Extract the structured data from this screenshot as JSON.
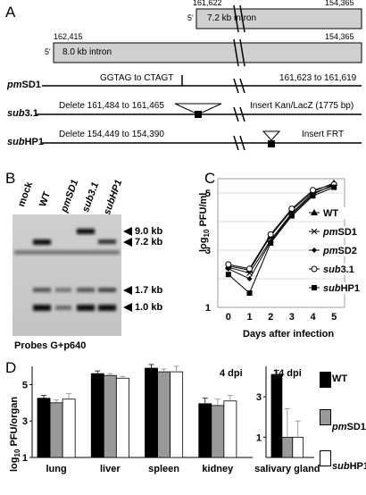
{
  "panels": {
    "a": "A",
    "b": "B",
    "c": "C",
    "d": "D"
  },
  "panel_a": {
    "intron1": {
      "start": "161,622",
      "end": "154,365",
      "five": "5'",
      "label": "7.2 kb intron"
    },
    "intron2": {
      "start": "162,415",
      "end": "154,365",
      "five": "5'",
      "label": "8.0 kb intron"
    },
    "pmSD1": {
      "name_it": "pm",
      "name_rest": "SD1",
      "left_text": "GGTAG to CTAGT",
      "right_text": "161,623 to 161,619"
    },
    "sub31": {
      "name_it": "sub",
      "name_rest": "3.1",
      "left_text": "Delete 161,484 to 161,465",
      "right_text": "Insert Kan/LacZ (1775 bp)"
    },
    "subHP1": {
      "name_it": "sub",
      "name_rest": "HP1",
      "left_text": "Delete 154,449 to 154,390",
      "right_text": "Insert FRT"
    }
  },
  "panel_b": {
    "lanes": [
      "mock",
      "WT",
      "pmSD1",
      "sub3.1",
      "subHP1"
    ],
    "bands": [
      "9.0 kb",
      "7.2 kb",
      "1.7 kb",
      "1.0 kb"
    ],
    "caption": "Probes G+p640"
  },
  "chart_data": [
    {
      "type": "line",
      "xlabel": "Days after infection",
      "ylabel": "log10 PFU/ml",
      "x": [
        0,
        1,
        2,
        3,
        4,
        5
      ],
      "ylim": [
        1,
        5.5
      ],
      "yticks": [
        1,
        3,
        5
      ],
      "grid": true,
      "legend_position": "right",
      "series": [
        {
          "name": "WT",
          "marker": "triangle",
          "values": [
            2.45,
            2.3,
            3.5,
            4.4,
            5.05,
            5.35
          ]
        },
        {
          "name": "pmSD1",
          "marker": "x",
          "values": [
            2.4,
            2.2,
            3.35,
            4.3,
            5.0,
            5.25
          ]
        },
        {
          "name": "pmSD2",
          "marker": "diamond",
          "values": [
            2.35,
            2.0,
            3.3,
            4.25,
            4.95,
            5.3
          ]
        },
        {
          "name": "sub3.1",
          "marker": "circle",
          "values": [
            2.5,
            2.35,
            3.55,
            4.45,
            5.1,
            5.3
          ]
        },
        {
          "name": "subHP1",
          "marker": "square",
          "values": [
            2.15,
            1.5,
            3.25,
            4.2,
            4.9,
            5.2
          ]
        }
      ]
    },
    {
      "type": "bar",
      "ylabel": "log10 PFU/organ",
      "annotation": "4 dpi",
      "categories": [
        "lung",
        "liver",
        "spleen",
        "kidney"
      ],
      "ylim": [
        1,
        6
      ],
      "yticks": [
        1,
        3,
        5
      ],
      "series": [
        {
          "name": "WT",
          "color": "#000000",
          "values": [
            4.25,
            5.6,
            5.9,
            3.95
          ],
          "err": [
            0.15,
            0.15,
            0.2,
            0.3
          ]
        },
        {
          "name": "pmSD1",
          "color": "#999999",
          "values": [
            4.0,
            5.5,
            5.7,
            3.85
          ],
          "err": [
            0.15,
            0.1,
            0.15,
            0.35
          ]
        },
        {
          "name": "subHP1",
          "color": "#ffffff",
          "values": [
            4.2,
            5.35,
            5.7,
            4.1
          ],
          "err": [
            0.3,
            0.1,
            0.3,
            0.3
          ]
        }
      ]
    },
    {
      "type": "bar",
      "annotation": "14 dpi",
      "categories": [
        "salivary gland"
      ],
      "ylim": [
        0,
        4.5
      ],
      "yticks": [
        1,
        3
      ],
      "series": [
        {
          "name": "WT",
          "color": "#000000",
          "values": [
            4.1
          ],
          "err": [
            0.2
          ]
        },
        {
          "name": "pmSD1",
          "color": "#999999",
          "values": [
            1.0
          ],
          "err": [
            1.4
          ]
        },
        {
          "name": "subHP1",
          "color": "#ffffff",
          "values": [
            1.0
          ],
          "err": [
            0.8
          ]
        }
      ]
    }
  ],
  "legend_d": [
    {
      "name_it": "",
      "name_rest": "WT",
      "color": "#000000"
    },
    {
      "name_it": "pm",
      "name_rest": "SD1",
      "color": "#999999"
    },
    {
      "name_it": "sub",
      "name_rest": "HP1",
      "color": "#ffffff"
    }
  ]
}
